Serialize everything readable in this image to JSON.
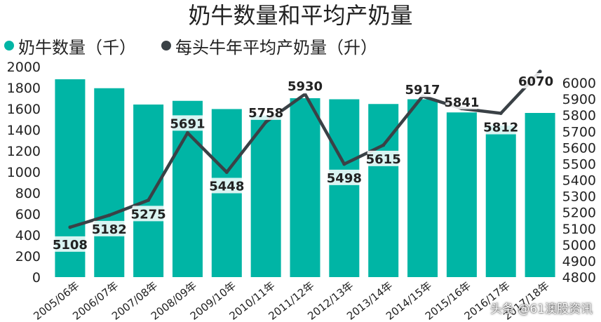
{
  "chart_data": {
    "type": "bar+line",
    "title": "奶牛数量和平均产奶量",
    "categories": [
      "2005/06年",
      "2006/07年",
      "2007/08年",
      "2008/09年",
      "2009/10年",
      "2010/11年",
      "2011/12年",
      "2012/13年",
      "2013/14年",
      "2014/15年",
      "2015/16年",
      "2016/17年",
      "2017/18年"
    ],
    "series": [
      {
        "name": "奶牛数量（千）",
        "type": "bar",
        "axis": "left",
        "color": "#00b5a5",
        "values": [
          1880,
          1795,
          1640,
          1675,
          1597,
          1535,
          1700,
          1690,
          1645,
          1690,
          1565,
          1440,
          1560
        ]
      },
      {
        "name": "每头牛年平均产奶量（升）",
        "type": "line",
        "axis": "right",
        "color": "#3a4146",
        "values": [
          5108,
          5182,
          5275,
          5691,
          5448,
          5758,
          5930,
          5498,
          5615,
          5917,
          5841,
          5812,
          6070
        ],
        "labels": [
          "5108",
          "5182",
          "5275",
          "5691",
          "5448",
          "5758",
          "5930",
          "5498",
          "5615",
          "5917",
          "5841",
          "5812",
          "6070"
        ]
      }
    ],
    "ylim_left": [
      0,
      2000
    ],
    "yticks_left": [
      "0",
      "200",
      "400",
      "600",
      "800",
      "1000",
      "1200",
      "1400",
      "1600",
      "1800",
      "2000"
    ],
    "ylim_right": [
      4800,
      6100
    ],
    "yticks_right": [
      "4800",
      "4900",
      "5000",
      "5100",
      "5200",
      "5300",
      "5400",
      "5500",
      "5600",
      "5700",
      "5800",
      "5900",
      "6000"
    ],
    "legend_position": "top-left",
    "grid": false
  },
  "watermark": "头条 @61澳股资讯"
}
